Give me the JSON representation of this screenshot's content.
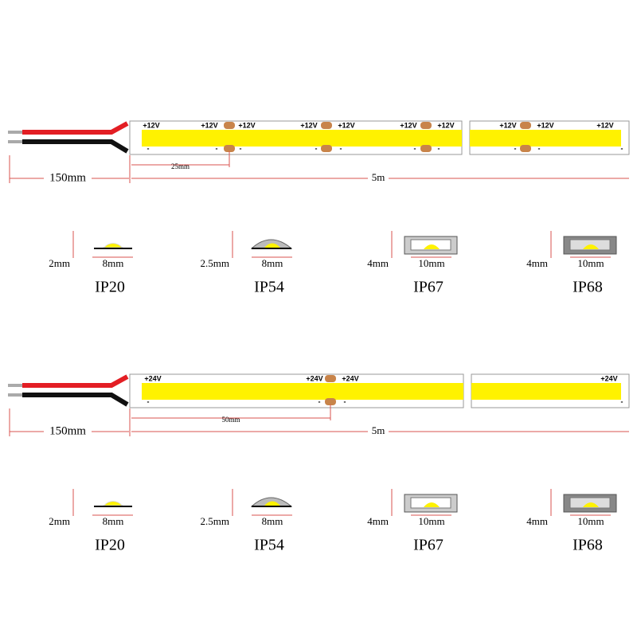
{
  "sections": [
    {
      "strip": {
        "plus_labels": [
          "+12V",
          "+12V",
          "+12V",
          "+12V",
          "+12V",
          "+12V",
          "+12V",
          "+12V",
          "+12V",
          "+12V"
        ],
        "minus_labels": [
          "-",
          "-",
          "-",
          "-",
          "-",
          "-",
          "-",
          "-",
          "-",
          "-"
        ],
        "cut_spacing": "25mm",
        "lead_length": "150mm",
        "total_length": "5m"
      },
      "profiles": [
        {
          "height": "2mm",
          "width": "8mm",
          "rating": "IP20"
        },
        {
          "height": "2.5mm",
          "width": "8mm",
          "rating": "IP54"
        },
        {
          "height": "4mm",
          "width": "10mm",
          "rating": "IP67"
        },
        {
          "height": "4mm",
          "width": "10mm",
          "rating": "IP68"
        }
      ]
    },
    {
      "strip": {
        "plus_labels": [
          "+24V",
          "+24V",
          "+24V",
          "+24V"
        ],
        "minus_labels": [
          "-",
          "-",
          "-",
          "-"
        ],
        "cut_spacing": "50mm",
        "lead_length": "150mm",
        "total_length": "5m"
      },
      "profiles": [
        {
          "height": "2mm",
          "width": "8mm",
          "rating": "IP20"
        },
        {
          "height": "2.5mm",
          "width": "8mm",
          "rating": "IP54"
        },
        {
          "height": "4mm",
          "width": "10mm",
          "rating": "IP67"
        },
        {
          "height": "4mm",
          "width": "10mm",
          "rating": "IP68"
        }
      ]
    }
  ]
}
